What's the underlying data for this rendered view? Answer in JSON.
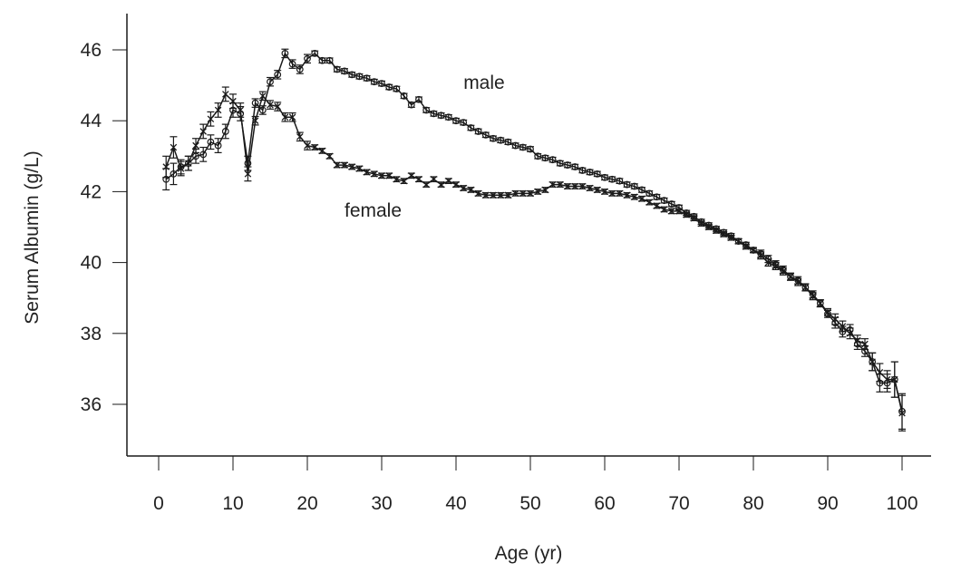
{
  "chart_data": {
    "type": "line",
    "title": "",
    "xlabel": "Age (yr)",
    "ylabel": "Serum Albumin (g/L)",
    "xlim": [
      0,
      100
    ],
    "ylim": [
      36,
      46
    ],
    "xticks": [
      "0",
      "10",
      "20",
      "30",
      "40",
      "50",
      "60",
      "70",
      "80",
      "90",
      "100"
    ],
    "yticks": [
      "36",
      "38",
      "40",
      "42",
      "44",
      "46"
    ],
    "grid": false,
    "annotations": [
      {
        "text": "male",
        "series": "male",
        "age": 41,
        "value": 44.9
      },
      {
        "text": "female",
        "series": "female",
        "age": 25,
        "value": 41.3
      }
    ],
    "x": [
      1,
      2,
      3,
      4,
      5,
      6,
      7,
      8,
      9,
      10,
      11,
      12,
      13,
      14,
      15,
      16,
      17,
      18,
      19,
      20,
      21,
      22,
      23,
      24,
      25,
      26,
      27,
      28,
      29,
      30,
      31,
      32,
      33,
      34,
      35,
      36,
      37,
      38,
      39,
      40,
      41,
      42,
      43,
      44,
      45,
      46,
      47,
      48,
      49,
      50,
      51,
      52,
      53,
      54,
      55,
      56,
      57,
      58,
      59,
      60,
      61,
      62,
      63,
      64,
      65,
      66,
      67,
      68,
      69,
      70,
      71,
      72,
      73,
      74,
      75,
      76,
      77,
      78,
      79,
      80,
      81,
      82,
      83,
      84,
      85,
      86,
      87,
      88,
      89,
      90,
      91,
      92,
      93,
      94,
      95,
      96,
      97,
      98,
      99,
      100
    ],
    "err": [
      0.3,
      0.3,
      0.2,
      0.2,
      0.2,
      0.2,
      0.2,
      0.2,
      0.2,
      0.2,
      0.2,
      0.2,
      0.12,
      0.12,
      0.12,
      0.12,
      0.12,
      0.12,
      0.12,
      0.12,
      0.07,
      0.07,
      0.07,
      0.07,
      0.07,
      0.07,
      0.07,
      0.07,
      0.07,
      0.07,
      0.07,
      0.07,
      0.07,
      0.07,
      0.07,
      0.07,
      0.07,
      0.07,
      0.07,
      0.07,
      0.07,
      0.07,
      0.07,
      0.07,
      0.07,
      0.07,
      0.07,
      0.07,
      0.07,
      0.07,
      0.07,
      0.07,
      0.07,
      0.07,
      0.07,
      0.07,
      0.07,
      0.07,
      0.07,
      0.07,
      0.07,
      0.07,
      0.07,
      0.07,
      0.07,
      0.07,
      0.07,
      0.07,
      0.07,
      0.07,
      0.07,
      0.07,
      0.07,
      0.07,
      0.07,
      0.07,
      0.07,
      0.07,
      0.07,
      0.07,
      0.1,
      0.1,
      0.1,
      0.1,
      0.1,
      0.1,
      0.1,
      0.1,
      0.1,
      0.1,
      0.15,
      0.15,
      0.15,
      0.15,
      0.15,
      0.25,
      0.25,
      0.25,
      0.5,
      0.5
    ],
    "series": [
      {
        "name": "male",
        "marker": "circle",
        "values": [
          42.35,
          42.5,
          42.7,
          42.8,
          43.0,
          43.05,
          43.4,
          43.3,
          43.7,
          44.3,
          44.2,
          42.8,
          44.5,
          44.3,
          45.1,
          45.3,
          45.9,
          45.6,
          45.45,
          45.75,
          45.9,
          45.7,
          45.7,
          45.45,
          45.4,
          45.3,
          45.25,
          45.2,
          45.1,
          45.05,
          44.95,
          44.9,
          44.7,
          44.45,
          44.6,
          44.3,
          44.2,
          44.15,
          44.1,
          44.0,
          43.95,
          43.8,
          43.7,
          43.6,
          43.5,
          43.45,
          43.4,
          43.3,
          43.25,
          43.2,
          43.0,
          42.95,
          42.9,
          42.8,
          42.75,
          42.7,
          42.6,
          42.55,
          42.5,
          42.4,
          42.35,
          42.3,
          42.2,
          42.15,
          42.05,
          41.95,
          41.85,
          41.75,
          41.65,
          41.55,
          41.4,
          41.3,
          41.15,
          41.05,
          40.95,
          40.85,
          40.75,
          40.6,
          40.5,
          40.35,
          40.25,
          40.1,
          39.95,
          39.8,
          39.6,
          39.5,
          39.3,
          39.1,
          38.85,
          38.55,
          38.3,
          38.05,
          38.1,
          37.7,
          37.5,
          37.2,
          36.6,
          36.6,
          36.7,
          35.8
        ]
      },
      {
        "name": "female",
        "marker": "x",
        "values": [
          42.7,
          43.25,
          42.65,
          42.8,
          43.3,
          43.7,
          44.05,
          44.3,
          44.75,
          44.55,
          44.3,
          42.5,
          44.0,
          44.7,
          44.45,
          44.4,
          44.1,
          44.1,
          43.55,
          43.3,
          43.25,
          43.15,
          43.0,
          42.75,
          42.75,
          42.7,
          42.65,
          42.55,
          42.5,
          42.45,
          42.45,
          42.35,
          42.3,
          42.45,
          42.35,
          42.2,
          42.35,
          42.2,
          42.3,
          42.2,
          42.1,
          42.05,
          41.95,
          41.9,
          41.9,
          41.9,
          41.9,
          41.95,
          41.95,
          41.95,
          42.0,
          42.05,
          42.2,
          42.2,
          42.15,
          42.15,
          42.15,
          42.1,
          42.05,
          42.0,
          41.95,
          41.95,
          41.9,
          41.85,
          41.8,
          41.7,
          41.6,
          41.5,
          41.45,
          41.45,
          41.35,
          41.25,
          41.1,
          41.0,
          40.9,
          40.8,
          40.7,
          40.6,
          40.45,
          40.35,
          40.2,
          40.0,
          39.9,
          39.75,
          39.6,
          39.45,
          39.3,
          39.05,
          38.85,
          38.6,
          38.4,
          38.2,
          38.0,
          37.8,
          37.7,
          37.2,
          36.9,
          36.7,
          36.7,
          35.75
        ]
      }
    ],
    "colors": {
      "ink": "#1a1a1a"
    }
  }
}
